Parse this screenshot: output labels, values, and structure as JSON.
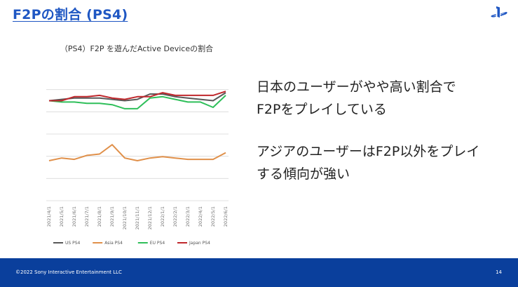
{
  "slide": {
    "title": "F2Pの割合 (PS4)",
    "bullets": [
      [
        "日本のユーザーがやや高い割合で",
        "F2Pをプレイしている"
      ],
      [
        "アジアのユーザーはF2P以外をプレイ",
        "する傾向が強い"
      ]
    ],
    "logo_icon": "playstation-logo-icon",
    "footer": {
      "copyright": "©2022 Sony Interactive Entertainment LLC",
      "page_number": "14"
    },
    "colors": {
      "title": "#1f57c3",
      "footer_bg": "#0a3f9c"
    }
  },
  "chart_data": {
    "type": "line",
    "title": "（PS4）F2P を遊んだActive Deviceの割合",
    "xlabel": "",
    "ylabel": "",
    "ylim": [
      0,
      100
    ],
    "yticks_labeled": false,
    "grid": true,
    "categories": [
      "2021/4/1",
      "2021/5/1",
      "2021/6/1",
      "2021/7/1",
      "2021/8/1",
      "2021/9/1",
      "2021/10/1",
      "2021/11/1",
      "2021/12/1",
      "2022/1/1",
      "2022/2/1",
      "2022/3/1",
      "2022/4/1",
      "2022/5/1",
      "2022/6/1"
    ],
    "series": [
      {
        "name": "US PS4",
        "color": "#595959",
        "values": [
          75,
          76,
          77,
          77,
          77,
          76,
          75,
          76,
          80,
          80,
          78,
          77,
          76,
          75,
          81
        ]
      },
      {
        "name": "Asia PS4",
        "color": "#e0904a",
        "values": [
          30,
          32,
          31,
          34,
          35,
          42,
          32,
          30,
          32,
          33,
          32,
          31,
          31,
          31,
          36
        ]
      },
      {
        "name": "EU PS4",
        "color": "#2fbf5a",
        "values": [
          75,
          74,
          74,
          73,
          73,
          72,
          69,
          69,
          77,
          78,
          76,
          74,
          74,
          70,
          79
        ]
      },
      {
        "name": "Japan PS4",
        "color": "#c0282d",
        "values": [
          75,
          75,
          78,
          78,
          79,
          77,
          76,
          78,
          78,
          81,
          79,
          79,
          79,
          79,
          82
        ]
      }
    ],
    "legend_position": "bottom"
  }
}
